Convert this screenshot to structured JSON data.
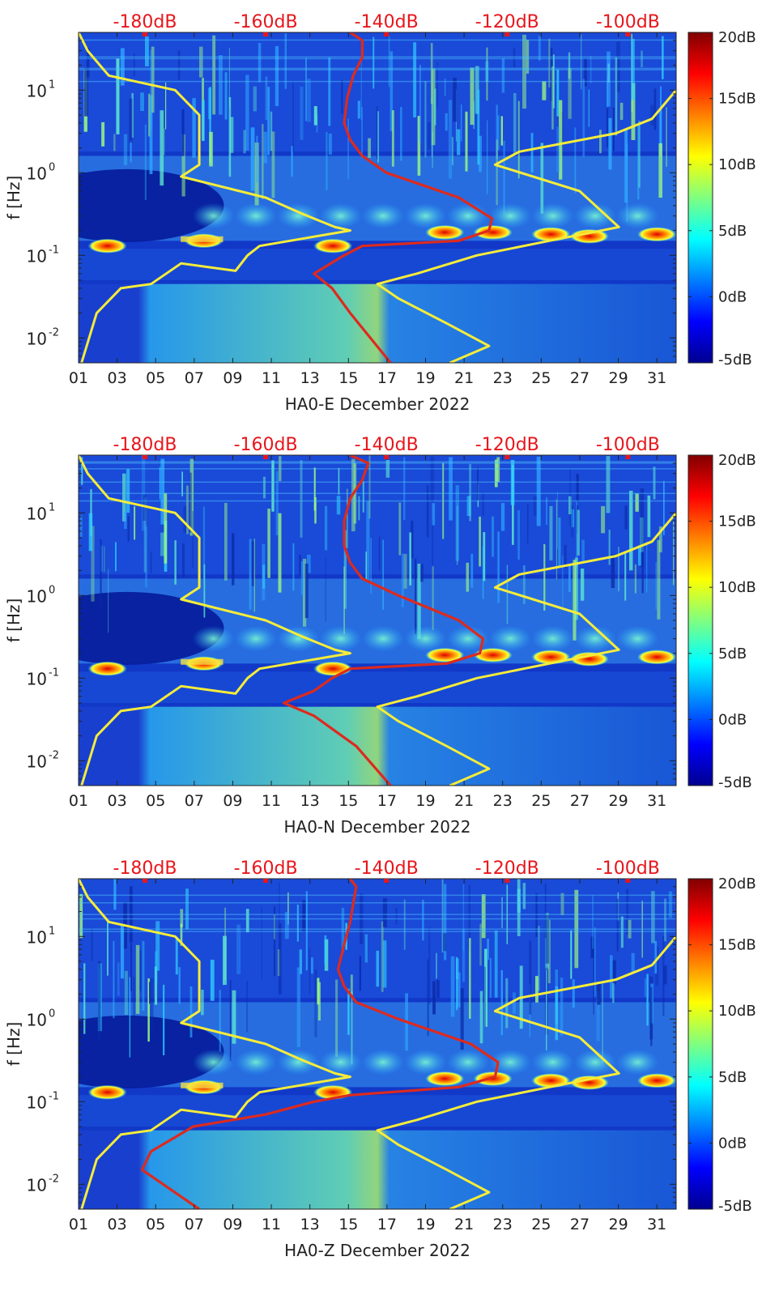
{
  "colors": {
    "red_curve": "#dd2a1e",
    "yellow_curve": "#f5ec3a",
    "red_label": "#e8161b",
    "background_jet_low": "#00108a",
    "background_jet_mid": "#1a8fe0"
  },
  "colorbar": {
    "ticks": [
      "20dB",
      "15dB",
      "10dB",
      "5dB",
      "0dB",
      "-5dB"
    ],
    "values": [
      20,
      15,
      10,
      5,
      0,
      -5
    ],
    "range": [
      -5,
      20
    ],
    "colormap": "jet"
  },
  "chart_data": [
    {
      "type": "heatmap",
      "xlabel": "HA0-E December 2022",
      "ylabel": "f [Hz]",
      "x_tick_labels": [
        "01",
        "03",
        "05",
        "07",
        "09",
        "11",
        "13",
        "15",
        "17",
        "19",
        "21",
        "23",
        "25",
        "27",
        "29",
        "31"
      ],
      "x_range": [
        1,
        32
      ],
      "y_tick_labels": [
        "10",
        "10",
        "10",
        "10"
      ],
      "y_tick_exponents": [
        "1",
        "0",
        "-1",
        "-2"
      ],
      "y_tick_values": [
        10,
        1,
        0.1,
        0.01
      ],
      "y_range": [
        0.005,
        50
      ],
      "y_scale": "log",
      "top_axis_labels": [
        "-180dB",
        "-160dB",
        "-140dB",
        "-120dB",
        "-100dB"
      ],
      "top_axis_values": [
        -180,
        -160,
        -140,
        -120,
        -100
      ],
      "top_axis_range": [
        -191,
        -92
      ],
      "series": [
        {
          "color": "red",
          "top_db_x": [
            -146,
            -144,
            -144,
            -145.5,
            -146.5,
            -147,
            -146,
            -144,
            -140,
            -128,
            -122.5,
            -123,
            -128,
            -144,
            -147,
            -152,
            -149,
            -146,
            -139.3
          ],
          "freq_hz": [
            50,
            40,
            25,
            15,
            8,
            4,
            2.5,
            1.6,
            1,
            0.5,
            0.28,
            0.2,
            0.15,
            0.13,
            0.1,
            0.06,
            0.04,
            0.02,
            0.005
          ]
        },
        {
          "color": "yellow",
          "top_db_x": [
            -191,
            -189.5,
            -186,
            -175,
            -171,
            -171,
            -174,
            -160,
            -154,
            -148.5,
            -146,
            -161,
            -163,
            -165,
            -174,
            -179,
            -184,
            -188,
            -190.5
          ],
          "freq_hz": [
            50,
            30,
            15,
            10,
            5,
            1.25,
            0.9,
            0.5,
            0.32,
            0.22,
            0.2,
            0.13,
            0.1,
            0.065,
            0.08,
            0.045,
            0.04,
            0.02,
            0.005
          ]
        },
        {
          "color": "yellow",
          "top_db_x": [
            -92,
            -96,
            -102,
            -118,
            -122,
            -108,
            -101.5,
            -113,
            -125,
            -135,
            -141.5,
            -138,
            -130,
            -123,
            -129.5
          ],
          "freq_hz": [
            10,
            4.5,
            3,
            1.8,
            1.25,
            0.6,
            0.22,
            0.15,
            0.1,
            0.06,
            0.045,
            0.03,
            0.015,
            0.008,
            0.005
          ]
        }
      ]
    },
    {
      "type": "heatmap",
      "xlabel": "HA0-N December 2022",
      "ylabel": "f [Hz]",
      "x_tick_labels": [
        "01",
        "03",
        "05",
        "07",
        "09",
        "11",
        "13",
        "15",
        "17",
        "19",
        "21",
        "23",
        "25",
        "27",
        "29",
        "31"
      ],
      "x_range": [
        1,
        32
      ],
      "y_tick_labels": [
        "10",
        "10",
        "10",
        "10"
      ],
      "y_tick_exponents": [
        "1",
        "0",
        "-1",
        "-2"
      ],
      "y_tick_values": [
        10,
        1,
        0.1,
        0.01
      ],
      "y_range": [
        0.005,
        50
      ],
      "y_scale": "log",
      "top_axis_labels": [
        "-180dB",
        "-160dB",
        "-140dB",
        "-120dB",
        "-100dB"
      ],
      "top_axis_values": [
        -180,
        -160,
        -140,
        -120,
        -100
      ],
      "top_axis_range": [
        -191,
        -92
      ],
      "series": [
        {
          "color": "red",
          "top_db_x": [
            -146,
            -143,
            -144,
            -146,
            -147,
            -147,
            -146,
            -144,
            -138,
            -128,
            -124,
            -124.5,
            -130,
            -146,
            -149,
            -152,
            -157,
            -152,
            -145,
            -139.3
          ],
          "freq_hz": [
            50,
            40,
            25,
            15,
            8,
            4,
            2.5,
            1.6,
            1,
            0.5,
            0.3,
            0.2,
            0.15,
            0.13,
            0.1,
            0.07,
            0.05,
            0.035,
            0.015,
            0.005
          ]
        },
        {
          "color": "yellow",
          "top_db_x": [
            -191,
            -189.5,
            -186,
            -175,
            -171,
            -171,
            -174,
            -160,
            -154,
            -148.5,
            -146,
            -161,
            -163,
            -165,
            -174,
            -179,
            -184,
            -188,
            -190.5
          ],
          "freq_hz": [
            50,
            30,
            15,
            10,
            5,
            1.25,
            0.9,
            0.5,
            0.32,
            0.22,
            0.2,
            0.13,
            0.1,
            0.065,
            0.08,
            0.045,
            0.04,
            0.02,
            0.005
          ]
        },
        {
          "color": "yellow",
          "top_db_x": [
            -92,
            -96,
            -102,
            -118,
            -122,
            -108,
            -101.5,
            -113,
            -125,
            -135,
            -141.5,
            -138,
            -130,
            -123,
            -129.5
          ],
          "freq_hz": [
            10,
            4.5,
            3,
            1.8,
            1.25,
            0.6,
            0.22,
            0.15,
            0.1,
            0.06,
            0.045,
            0.03,
            0.015,
            0.008,
            0.005
          ]
        }
      ]
    },
    {
      "type": "heatmap",
      "xlabel": "HA0-Z December 2022",
      "ylabel": "f [Hz]",
      "x_tick_labels": [
        "01",
        "03",
        "05",
        "07",
        "09",
        "11",
        "13",
        "15",
        "17",
        "19",
        "21",
        "23",
        "25",
        "27",
        "29",
        "31"
      ],
      "x_range": [
        1,
        32
      ],
      "y_tick_labels": [
        "10",
        "10",
        "10",
        "10"
      ],
      "y_tick_exponents": [
        "1",
        "0",
        "-1",
        "-2"
      ],
      "y_tick_values": [
        10,
        1,
        0.1,
        0.01
      ],
      "y_range": [
        0.005,
        50
      ],
      "y_scale": "log",
      "top_axis_labels": [
        "-180dB",
        "-160dB",
        "-140dB",
        "-120dB",
        "-100dB"
      ],
      "top_axis_values": [
        -180,
        -160,
        -140,
        -120,
        -100
      ],
      "top_axis_range": [
        -191,
        -92
      ],
      "series": [
        {
          "color": "red",
          "top_db_x": [
            -146,
            -145,
            -145.5,
            -146,
            -147,
            -148,
            -147,
            -145,
            -138,
            -126,
            -121.5,
            -122,
            -128,
            -146,
            -152,
            -160,
            -172,
            -179,
            -180.5,
            -171
          ],
          "freq_hz": [
            50,
            40,
            25,
            15,
            8,
            4,
            2.5,
            1.6,
            1,
            0.5,
            0.3,
            0.2,
            0.15,
            0.12,
            0.1,
            0.07,
            0.05,
            0.025,
            0.015,
            0.005
          ]
        },
        {
          "color": "yellow",
          "top_db_x": [
            -191,
            -189.5,
            -186,
            -175,
            -171,
            -171,
            -174,
            -160,
            -154,
            -148.5,
            -146,
            -161,
            -163,
            -165,
            -174,
            -179,
            -184,
            -188,
            -190.5
          ],
          "freq_hz": [
            50,
            30,
            15,
            10,
            5,
            1.25,
            0.9,
            0.5,
            0.32,
            0.22,
            0.2,
            0.13,
            0.1,
            0.065,
            0.08,
            0.045,
            0.04,
            0.02,
            0.005
          ]
        },
        {
          "color": "yellow",
          "top_db_x": [
            -92,
            -96,
            -102,
            -118,
            -122,
            -108,
            -101.5,
            -113,
            -125,
            -135,
            -141.5,
            -138,
            -130,
            -123,
            -129.5
          ],
          "freq_hz": [
            10,
            4.5,
            3,
            1.8,
            1.25,
            0.6,
            0.22,
            0.15,
            0.1,
            0.06,
            0.045,
            0.03,
            0.015,
            0.008,
            0.005
          ]
        }
      ]
    }
  ]
}
